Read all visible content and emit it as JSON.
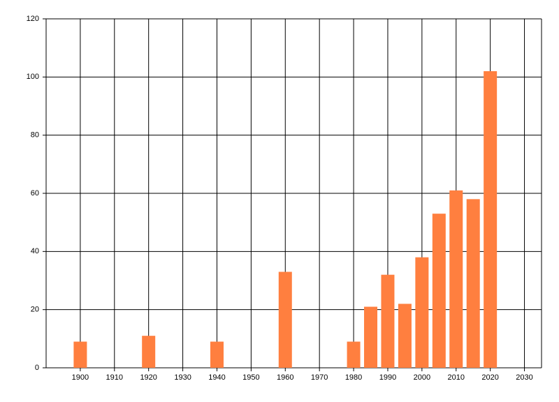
{
  "chart_data": {
    "type": "bar",
    "x": [
      1900,
      1920,
      1940,
      1960,
      1980,
      1985,
      1990,
      1995,
      2000,
      2005,
      2010,
      2015,
      2020
    ],
    "values": [
      9,
      11,
      9,
      33,
      9,
      21,
      32,
      22,
      38,
      53,
      61,
      58,
      102
    ],
    "color": "#ff7f3f",
    "xlim": [
      1890,
      2035
    ],
    "xticks": [
      1900,
      1910,
      1920,
      1930,
      1940,
      1950,
      1960,
      1970,
      1980,
      1990,
      2000,
      2010,
      2020,
      2030
    ],
    "ylim": [
      0,
      120
    ],
    "yticks": [
      0,
      20,
      40,
      60,
      80,
      100,
      120
    ],
    "grid": true
  }
}
